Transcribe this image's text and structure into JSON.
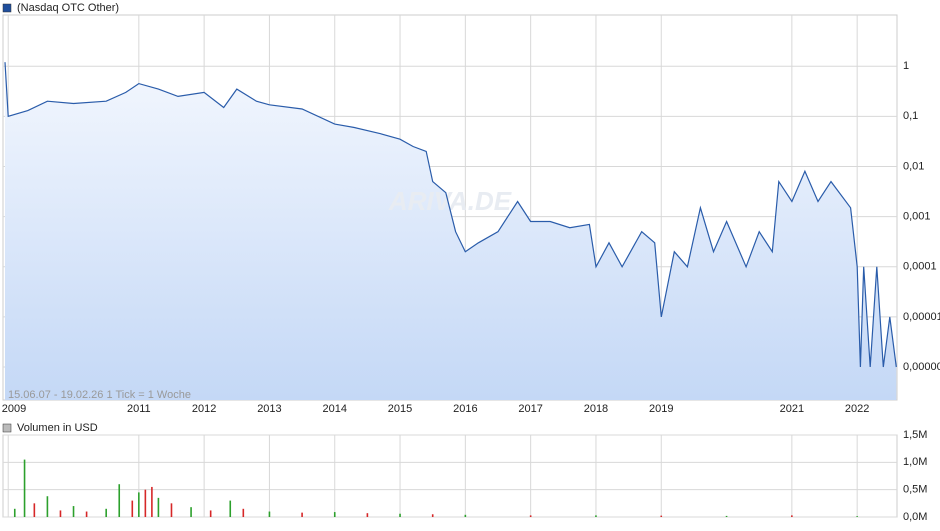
{
  "chart_data": [
    {
      "type": "line",
      "annotation": "15.06.07 - 19.02.26   1 Tick = 1 Woche",
      "watermark": "ARIVA.DE",
      "log_scale": true,
      "grid": true,
      "x": [
        2008.95,
        2009.0,
        2009.3,
        2009.6,
        2010.0,
        2010.5,
        2010.8,
        2011.0,
        2011.3,
        2011.6,
        2012.0,
        2012.3,
        2012.5,
        2012.8,
        2013.0,
        2013.5,
        2014.0,
        2014.3,
        2014.7,
        2015.0,
        2015.2,
        2015.4,
        2015.5,
        2015.7,
        2015.85,
        2016.0,
        2016.2,
        2016.5,
        2016.8,
        2017.0,
        2017.3,
        2017.6,
        2017.9,
        2018.0,
        2018.2,
        2018.4,
        2018.7,
        2018.9,
        2019.0,
        2019.2,
        2019.4,
        2019.6,
        2019.8,
        2020.0,
        2020.3,
        2020.5,
        2020.7,
        2020.8,
        2021.0,
        2021.2,
        2021.4,
        2021.6,
        2021.9,
        2022.0,
        2022.05,
        2022.1,
        2022.2,
        2022.3,
        2022.4,
        2022.5,
        2022.6
      ],
      "series": [
        {
          "name": "(Nasdaq OTC Other)",
          "color": "#2a5caa",
          "values": [
            1.2,
            0.1,
            0.13,
            0.2,
            0.18,
            0.2,
            0.3,
            0.45,
            0.35,
            0.25,
            0.3,
            0.15,
            0.35,
            0.2,
            0.17,
            0.14,
            0.07,
            0.06,
            0.045,
            0.035,
            0.025,
            0.02,
            0.005,
            0.003,
            0.0005,
            0.0002,
            0.0003,
            0.0005,
            0.002,
            0.0008,
            0.0008,
            0.0006,
            0.0007,
            0.0001,
            0.0003,
            0.0001,
            0.0005,
            0.0003,
            1e-05,
            0.0002,
            0.0001,
            0.0015,
            0.0002,
            0.0008,
            0.0001,
            0.0005,
            0.0002,
            0.005,
            0.002,
            0.008,
            0.002,
            0.005,
            0.0015,
            0.0001,
            1e-06,
            0.0001,
            1e-06,
            0.0001,
            1e-06,
            1e-05,
            1e-06
          ]
        }
      ],
      "xlim": [
        2008.92,
        2022.61
      ],
      "xticks": [
        2009,
        2011,
        2012,
        2013,
        2014,
        2015,
        2016,
        2017,
        2018,
        2019,
        2021,
        2022
      ],
      "ylim": [
        2.2e-07,
        10.5
      ],
      "yticks": [
        1,
        {
          "value": 0.1,
          "label": "0,1"
        },
        {
          "value": 0.01,
          "label": "0,01"
        },
        {
          "value": 0.001,
          "label": "0,001"
        },
        {
          "value": 0.0001,
          "label": "0,0001"
        },
        {
          "value": 1e-05,
          "label": "0,00001"
        },
        {
          "value": 1e-06,
          "label": "0,00000"
        }
      ]
    },
    {
      "type": "bar",
      "title": "Volumen in USD",
      "grid": true,
      "x": [
        2009.1,
        2009.25,
        2009.4,
        2009.6,
        2009.8,
        2010.0,
        2010.2,
        2010.5,
        2010.7,
        2010.9,
        2011.0,
        2011.1,
        2011.2,
        2011.3,
        2011.5,
        2011.8,
        2012.1,
        2012.4,
        2012.6,
        2013.0,
        2013.5,
        2014.0,
        2014.5,
        2015.0,
        2015.5,
        2016.0,
        2017.0,
        2018.0,
        2019.0,
        2020.0,
        2021.0,
        2022.0
      ],
      "values": [
        150000,
        1050000,
        250000,
        380000,
        120000,
        200000,
        100000,
        150000,
        600000,
        300000,
        450000,
        500000,
        550000,
        350000,
        250000,
        180000,
        120000,
        300000,
        150000,
        100000,
        80000,
        90000,
        70000,
        60000,
        50000,
        40000,
        30000,
        30000,
        25000,
        20000,
        30000,
        15000
      ],
      "colors": [
        "#2ca02c",
        "#2ca02c",
        "#d62728",
        "#2ca02c",
        "#d62728",
        "#2ca02c",
        "#d62728",
        "#2ca02c",
        "#2ca02c",
        "#d62728",
        "#2ca02c",
        "#d62728",
        "#d62728",
        "#2ca02c",
        "#d62728",
        "#2ca02c",
        "#d62728",
        "#2ca02c",
        "#d62728",
        "#2ca02c",
        "#d62728",
        "#2ca02c",
        "#d62728",
        "#2ca02c",
        "#d62728",
        "#2ca02c",
        "#d62728",
        "#2ca02c",
        "#d62728",
        "#2ca02c",
        "#d62728",
        "#2ca02c"
      ],
      "xlim": [
        2008.92,
        2022.61
      ],
      "xticks": [
        2009,
        2011,
        2012,
        2013,
        2014,
        2015,
        2016,
        2017,
        2018,
        2019,
        2021,
        2022
      ],
      "ylim": [
        0,
        1500000
      ],
      "yticks": [
        {
          "value": 0,
          "label": "0,0M"
        },
        {
          "value": 500000,
          "label": "0,5M"
        },
        {
          "value": 1000000,
          "label": "1,0M"
        },
        {
          "value": 1500000,
          "label": "1,5M"
        }
      ]
    }
  ]
}
